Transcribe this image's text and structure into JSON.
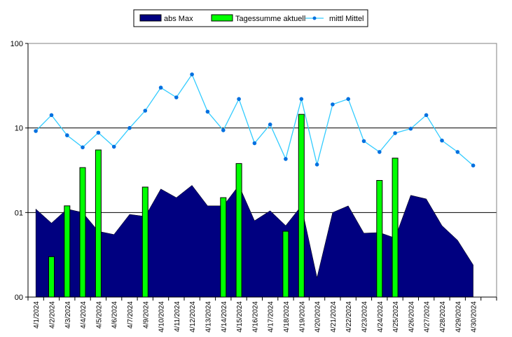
{
  "chart_data": {
    "type": "combo",
    "y_scale": "log",
    "ylim": [
      0.1,
      100
    ],
    "y_ticks": [
      {
        "value": 0.1,
        "label": "00"
      },
      {
        "value": 1,
        "label": "01"
      },
      {
        "value": 10,
        "label": "10"
      },
      {
        "value": 100,
        "label": "100"
      }
    ],
    "grid": "horizontal",
    "legend_position": "top-center",
    "categories": [
      "4/1/2024",
      "4/2/2024",
      "4/3/2024",
      "4/4/2024",
      "4/5/2024",
      "4/6/2024",
      "4/7/2024",
      "4/9/2024",
      "4/10/2024",
      "4/11/2024",
      "4/12/2024",
      "4/13/2024",
      "4/14/2024",
      "4/15/2024",
      "4/16/2024",
      "4/17/2024",
      "4/18/2024",
      "4/19/2024",
      "4/20/2024",
      "4/21/2024",
      "4/22/2024",
      "4/23/2024",
      "4/24/2024",
      "4/25/2024",
      "4/26/2024",
      "4/27/2024",
      "4/28/2024",
      "4/29/2024",
      "4/30/2024"
    ],
    "series": [
      {
        "name": "abs Max",
        "kind": "area",
        "color": "#000080",
        "values": [
          1.1,
          0.75,
          1.1,
          1.0,
          0.6,
          0.55,
          0.95,
          0.9,
          1.9,
          1.5,
          2.1,
          1.2,
          1.2,
          2.1,
          0.8,
          1.05,
          0.7,
          1.2,
          0.17,
          1.0,
          1.2,
          0.57,
          0.58,
          0.5,
          1.6,
          1.45,
          0.7,
          0.47,
          0.24
        ]
      },
      {
        "name": "Tagessumme aktuell",
        "kind": "bar",
        "color": "#00ff00",
        "values": [
          null,
          0.3,
          1.2,
          3.4,
          5.5,
          null,
          null,
          2.0,
          null,
          null,
          null,
          null,
          1.5,
          3.8,
          null,
          null,
          0.6,
          14.5,
          null,
          null,
          null,
          null,
          2.4,
          4.4,
          null,
          null,
          null,
          null,
          null
        ]
      },
      {
        "name": "mittl Mittel",
        "kind": "line",
        "color": "#33ccff",
        "values": [
          9.2,
          14.2,
          8.2,
          5.9,
          8.8,
          6.0,
          10.0,
          16.0,
          30.0,
          23.0,
          43.0,
          15.6,
          9.4,
          22.0,
          6.6,
          11.0,
          4.3,
          22.0,
          3.7,
          19.0,
          22.0,
          7.0,
          5.2,
          8.7,
          9.8,
          14.2,
          7.1,
          5.2,
          3.6
        ]
      }
    ]
  }
}
